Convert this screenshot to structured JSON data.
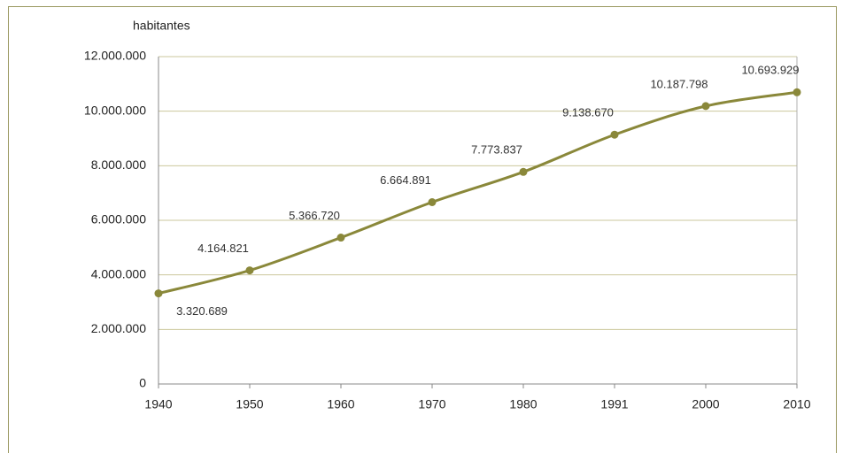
{
  "chart_data": {
    "type": "line",
    "y_label": "habitantes",
    "categories": [
      "1940",
      "1950",
      "1960",
      "1970",
      "1980",
      "1991",
      "2000",
      "2010"
    ],
    "series": [
      {
        "name": "habitantes",
        "color": "#8a883a",
        "values": [
          3320689,
          4164821,
          5366720,
          6664891,
          7773837,
          9138670,
          10187798,
          10693929
        ],
        "value_labels": [
          "3.320.689",
          "4.164.821",
          "5.366.720",
          "6.664.891",
          "7.773.837",
          "9.138.670",
          "10.187.798",
          "10.693.929"
        ]
      }
    ],
    "ylim": [
      0,
      12000000
    ],
    "yticks": [
      0,
      {
        "value": 2000000,
        "label": "2.000.000"
      },
      {
        "value": 4000000,
        "label": "4.000.000"
      },
      {
        "value": 6000000,
        "label": "6.000.000"
      },
      {
        "value": 8000000,
        "label": "8.000.000"
      },
      {
        "value": 10000000,
        "label": "10.000.000"
      },
      {
        "value": 12000000,
        "label": "12.000.000"
      }
    ],
    "grid": true
  }
}
